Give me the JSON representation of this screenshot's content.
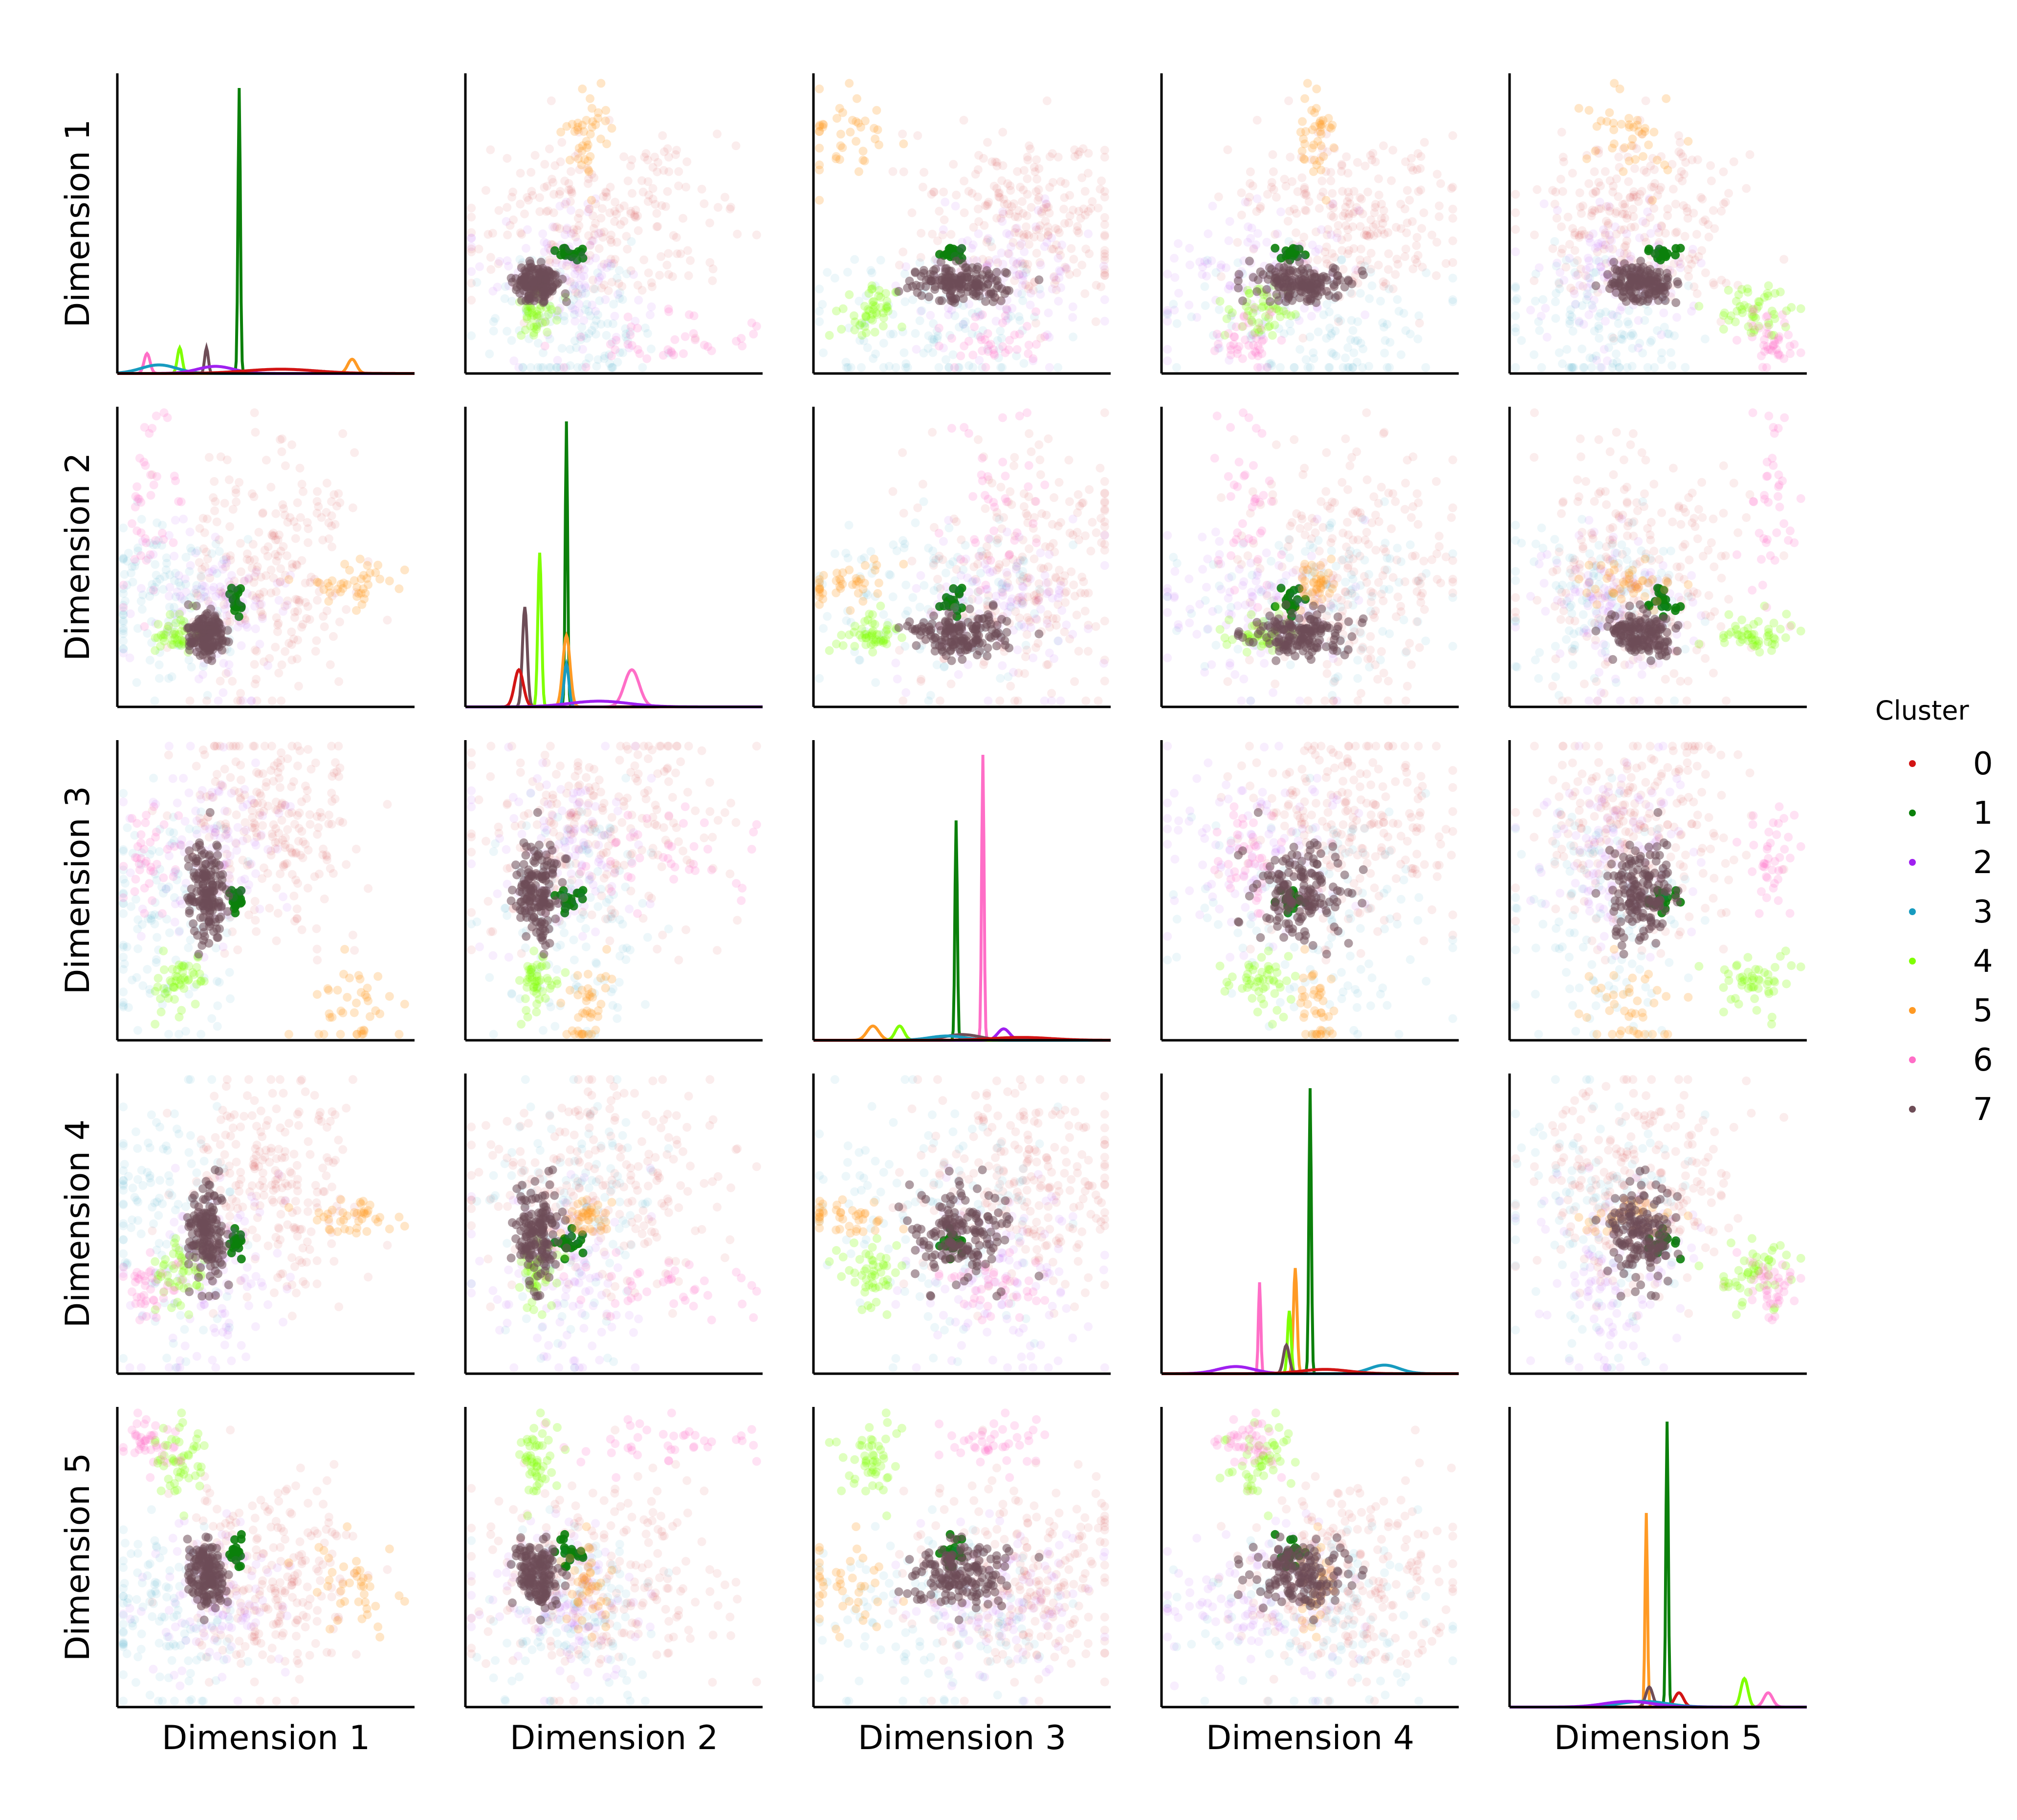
{
  "chart_data": {
    "type": "scatter",
    "subtype": "pairplot",
    "title": "",
    "variables": [
      "Dimension 1",
      "Dimension 2",
      "Dimension 3",
      "Dimension 4",
      "Dimension 5"
    ],
    "diagonal_kind": "kde",
    "offdiagonal_kind": "scatter",
    "tick_labels": "none",
    "grid": false,
    "legend": {
      "title": "Cluster",
      "placement": "right",
      "entries": [
        "0",
        "1",
        "2",
        "3",
        "4",
        "5",
        "6",
        "7"
      ]
    },
    "colors": {
      "0": "#d21414",
      "1": "#0b800b",
      "2": "#a020f0",
      "3": "#179bbf",
      "4": "#7fff00",
      "5": "#ff9a24",
      "6": "#ff6ec7",
      "7": "#6e4d57"
    },
    "axis_range_per_dimension": [
      0,
      1
    ],
    "clusters": [
      {
        "name": "0",
        "color": "#d21414",
        "point_alpha": 0.08,
        "centroid": [
          0.52,
          0.45,
          0.72,
          0.62,
          0.42
        ],
        "spread": [
          0.14,
          0.22,
          0.2,
          0.17,
          0.18
        ],
        "size": 240
      },
      {
        "name": "1",
        "color": "#0b800b",
        "point_alpha": 0.9,
        "centroid": [
          0.4,
          0.36,
          0.47,
          0.44,
          0.52
        ],
        "spread": [
          0.01,
          0.025,
          0.02,
          0.015,
          0.025
        ],
        "size": 20
      },
      {
        "name": "2",
        "color": "#a020f0",
        "point_alpha": 0.08,
        "centroid": [
          0.33,
          0.34,
          0.62,
          0.3,
          0.35
        ],
        "spread": [
          0.13,
          0.14,
          0.16,
          0.16,
          0.12
        ],
        "size": 110
      },
      {
        "name": "3",
        "color": "#179bbf",
        "point_alpha": 0.08,
        "centroid": [
          0.15,
          0.38,
          0.43,
          0.55,
          0.3
        ],
        "spread": [
          0.14,
          0.14,
          0.2,
          0.22,
          0.18
        ],
        "size": 120
      },
      {
        "name": "4",
        "color": "#7fff00",
        "point_alpha": 0.25,
        "centroid": [
          0.22,
          0.24,
          0.2,
          0.33,
          0.83
        ],
        "spread": [
          0.04,
          0.03,
          0.06,
          0.05,
          0.06
        ],
        "size": 50
      },
      {
        "name": "5",
        "color": "#ff9a24",
        "point_alpha": 0.25,
        "centroid": [
          0.8,
          0.4,
          0.12,
          0.52,
          0.4
        ],
        "spread": [
          0.1,
          0.04,
          0.08,
          0.03,
          0.08
        ],
        "size": 40
      },
      {
        "name": "6",
        "color": "#ff6ec7",
        "point_alpha": 0.2,
        "centroid": [
          0.1,
          0.7,
          0.6,
          0.3,
          0.88
        ],
        "spread": [
          0.04,
          0.2,
          0.1,
          0.05,
          0.04
        ],
        "size": 40
      },
      {
        "name": "7",
        "color": "#6e4d57",
        "point_alpha": 0.55,
        "centroid": [
          0.3,
          0.24,
          0.5,
          0.47,
          0.44
        ],
        "spread": [
          0.03,
          0.035,
          0.09,
          0.08,
          0.05
        ],
        "size": 160
      }
    ],
    "diagonal_kde": [
      {
        "dimension": "Dimension 1",
        "peaks": [
          {
            "cluster": "1",
            "position": 0.41,
            "width": 0.004,
            "height": 1.0
          },
          {
            "cluster": "7",
            "position": 0.3,
            "width": 0.006,
            "height": 0.09
          },
          {
            "cluster": "4",
            "position": 0.21,
            "width": 0.008,
            "height": 0.09
          },
          {
            "cluster": "6",
            "position": 0.1,
            "width": 0.01,
            "height": 0.07
          },
          {
            "cluster": "5",
            "position": 0.79,
            "width": 0.015,
            "height": 0.05
          },
          {
            "cluster": "3",
            "position": 0.14,
            "width": 0.06,
            "height": 0.03
          },
          {
            "cluster": "2",
            "position": 0.33,
            "width": 0.06,
            "height": 0.025
          },
          {
            "cluster": "0",
            "position": 0.55,
            "width": 0.12,
            "height": 0.015
          }
        ]
      },
      {
        "dimension": "Dimension 2",
        "peaks": [
          {
            "cluster": "1",
            "position": 0.34,
            "width": 0.004,
            "height": 1.0
          },
          {
            "cluster": "4",
            "position": 0.25,
            "width": 0.006,
            "height": 0.54
          },
          {
            "cluster": "7",
            "position": 0.2,
            "width": 0.008,
            "height": 0.35
          },
          {
            "cluster": "5",
            "position": 0.34,
            "width": 0.012,
            "height": 0.25
          },
          {
            "cluster": "3",
            "position": 0.34,
            "width": 0.008,
            "height": 0.15
          },
          {
            "cluster": "0",
            "position": 0.18,
            "width": 0.015,
            "height": 0.13
          },
          {
            "cluster": "6",
            "position": 0.56,
            "width": 0.025,
            "height": 0.13
          },
          {
            "cluster": "2",
            "position": 0.45,
            "width": 0.1,
            "height": 0.02
          }
        ]
      },
      {
        "dimension": "Dimension 3",
        "peaks": [
          {
            "cluster": "6",
            "position": 0.57,
            "width": 0.004,
            "height": 1.0
          },
          {
            "cluster": "1",
            "position": 0.48,
            "width": 0.004,
            "height": 0.77
          },
          {
            "cluster": "5",
            "position": 0.2,
            "width": 0.02,
            "height": 0.05
          },
          {
            "cluster": "4",
            "position": 0.29,
            "width": 0.015,
            "height": 0.05
          },
          {
            "cluster": "2",
            "position": 0.64,
            "width": 0.02,
            "height": 0.04
          },
          {
            "cluster": "7",
            "position": 0.5,
            "width": 0.06,
            "height": 0.02
          },
          {
            "cluster": "3",
            "position": 0.45,
            "width": 0.06,
            "height": 0.015
          },
          {
            "cluster": "0",
            "position": 0.7,
            "width": 0.1,
            "height": 0.01
          }
        ]
      },
      {
        "dimension": "Dimension 4",
        "peaks": [
          {
            "cluster": "1",
            "position": 0.5,
            "width": 0.004,
            "height": 1.0
          },
          {
            "cluster": "5",
            "position": 0.45,
            "width": 0.006,
            "height": 0.37
          },
          {
            "cluster": "6",
            "position": 0.33,
            "width": 0.004,
            "height": 0.32
          },
          {
            "cluster": "4",
            "position": 0.43,
            "width": 0.006,
            "height": 0.22
          },
          {
            "cluster": "7",
            "position": 0.42,
            "width": 0.01,
            "height": 0.1
          },
          {
            "cluster": "2",
            "position": 0.25,
            "width": 0.06,
            "height": 0.025
          },
          {
            "cluster": "3",
            "position": 0.75,
            "width": 0.05,
            "height": 0.03
          },
          {
            "cluster": "0",
            "position": 0.55,
            "width": 0.08,
            "height": 0.015
          }
        ]
      },
      {
        "dimension": "Dimension 5",
        "peaks": [
          {
            "cluster": "1",
            "position": 0.53,
            "width": 0.004,
            "height": 1.0
          },
          {
            "cluster": "5",
            "position": 0.46,
            "width": 0.004,
            "height": 0.68
          },
          {
            "cluster": "4",
            "position": 0.79,
            "width": 0.012,
            "height": 0.1
          },
          {
            "cluster": "7",
            "position": 0.47,
            "width": 0.012,
            "height": 0.07
          },
          {
            "cluster": "6",
            "position": 0.87,
            "width": 0.015,
            "height": 0.05
          },
          {
            "cluster": "0",
            "position": 0.57,
            "width": 0.015,
            "height": 0.05
          },
          {
            "cluster": "3",
            "position": 0.45,
            "width": 0.08,
            "height": 0.02
          },
          {
            "cluster": "2",
            "position": 0.4,
            "width": 0.08,
            "height": 0.02
          }
        ]
      }
    ]
  }
}
